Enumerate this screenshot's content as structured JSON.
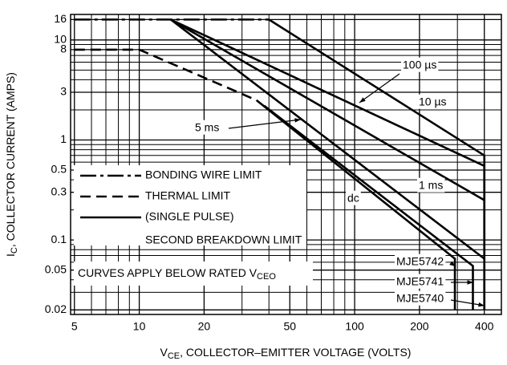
{
  "chart_data": {
    "type": "line",
    "log_x": true,
    "log_y": true,
    "grid": true,
    "color": "#000000",
    "xlabel": {
      "main": "V",
      "sub": "CE",
      "rest": ", COLLECTOR–EMITTER VOLTAGE (VOLTS)"
    },
    "ylabel": {
      "main": "I",
      "sub": "C",
      "rest": ", COLLECTOR CURRENT (AMPS)"
    },
    "xlim": [
      4.8,
      480
    ],
    "ylim": [
      0.018,
      18
    ],
    "xticks": [
      5,
      10,
      20,
      50,
      100,
      200,
      400
    ],
    "yticks": [
      0.02,
      0.05,
      0.1,
      0.3,
      0.5,
      1,
      3,
      8,
      10,
      16
    ],
    "xminor": [
      6,
      7,
      8,
      9,
      30,
      40,
      60,
      70,
      80,
      90,
      300
    ],
    "yminor": [
      0.03,
      0.04,
      0.06,
      0.07,
      0.08,
      0.09,
      0.2,
      0.4,
      0.6,
      0.7,
      0.8,
      0.9,
      2,
      4,
      5,
      6,
      7,
      9
    ],
    "legend": {
      "entries": [
        "BONDING WIRE LIMIT",
        "THERMAL LIMIT",
        "(SINGLE PULSE)",
        "SECOND BREAKDOWN LIMIT"
      ]
    },
    "series": [
      {
        "style": "dashdot",
        "x": [
          5,
          40
        ],
        "values": [
          16,
          16
        ]
      },
      {
        "style": "dashed",
        "x": [
          5,
          10,
          35
        ],
        "values": [
          8,
          8,
          2.5
        ]
      },
      {
        "style": "solid",
        "x": [
          40,
          400,
          400
        ],
        "values": [
          16,
          0.7,
          0.02
        ]
      },
      {
        "style": "solid",
        "x": [
          14,
          400,
          400
        ],
        "values": [
          16,
          0.55,
          0.02
        ]
      },
      {
        "style": "solid",
        "x": [
          14,
          400
        ],
        "values": [
          16,
          0.25
        ]
      },
      {
        "style": "solid",
        "x": [
          14,
          400
        ],
        "values": [
          16,
          0.065
        ]
      },
      {
        "style": "solid",
        "x": [
          35,
          292,
          292
        ],
        "values": [
          2.5,
          0.065,
          0.02
        ]
      },
      {
        "style": "solid",
        "x": [
          38,
          354,
          354
        ],
        "values": [
          2.2,
          0.055,
          0.02
        ]
      }
    ],
    "annotations": [
      "100 µs",
      "10 µs",
      "5 ms",
      "1 ms",
      "dc",
      "MJE5742",
      "MJE5741",
      "MJE5740"
    ],
    "note": {
      "main": "CURVES APPLY BELOW RATED V",
      "sub": "CEO"
    }
  }
}
